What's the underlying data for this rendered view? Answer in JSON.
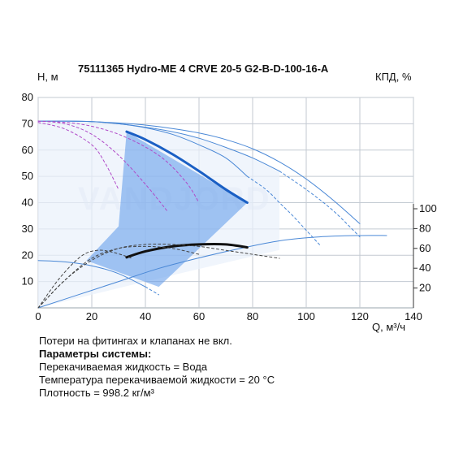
{
  "chart_data": {
    "type": "line",
    "title": "75111365 Hydro-ME 4 CRVE 20-5 G2-B-D-100-16-A",
    "ylabel_left": "H, м",
    "ylabel_right": "КПД, %",
    "xlabel": "Q, м³/ч",
    "xlim": [
      0,
      140
    ],
    "ylim_left": [
      0,
      80
    ],
    "ylim_right": [
      0,
      100
    ],
    "x_ticks": [
      0,
      20,
      40,
      60,
      80,
      100,
      120,
      140
    ],
    "y_ticks_left": [
      10,
      20,
      30,
      40,
      50,
      60,
      70,
      80
    ],
    "y_ticks_right": [
      20,
      40,
      60,
      80,
      100
    ],
    "grid": true,
    "watermark": "VANDJORD",
    "shaded_area": {
      "color": "#5b97ea",
      "points": [
        [
          18,
          18
        ],
        [
          30,
          31
        ],
        [
          33,
          67
        ],
        [
          78,
          40
        ],
        [
          45,
          8
        ]
      ]
    },
    "series": [
      {
        "axis": "left",
        "color": "#1a5fc4",
        "width": 3,
        "x": [
          33,
          40,
          50,
          60,
          70,
          78
        ],
        "y": [
          67,
          64,
          58.5,
          52,
          45,
          40
        ]
      },
      {
        "axis": "left",
        "color": "#4a88d6",
        "width": 1,
        "x": [
          0,
          10,
          20,
          30,
          40,
          50,
          60,
          70,
          78
        ],
        "y": [
          71,
          71,
          70.8,
          70,
          68.5,
          66,
          62,
          57,
          50
        ]
      },
      {
        "axis": "left",
        "color": "#4a88d6",
        "width": 1,
        "dash": "3,3",
        "x": [
          78,
          85,
          90,
          95,
          100,
          105
        ],
        "y": [
          50,
          45,
          40,
          35,
          29.5,
          24
        ]
      },
      {
        "axis": "left",
        "color": "#4a88d6",
        "width": 1,
        "x": [
          0,
          10,
          20,
          30,
          40,
          50,
          60,
          70,
          80,
          90
        ],
        "y": [
          71,
          71,
          70.8,
          70,
          68.7,
          67,
          64.5,
          61,
          57,
          52
        ]
      },
      {
        "axis": "left",
        "color": "#4a88d6",
        "width": 1,
        "dash": "3,3",
        "x": [
          90,
          100,
          110,
          120
        ],
        "y": [
          52,
          45,
          37,
          27
        ]
      },
      {
        "axis": "left",
        "color": "#4a88d6",
        "width": 1,
        "x": [
          0,
          10,
          20,
          30,
          40,
          50,
          60,
          70,
          80,
          90,
          100,
          110,
          120
        ],
        "y": [
          71,
          71,
          70.8,
          70.3,
          69.5,
          68.2,
          66.5,
          64,
          60.5,
          55.5,
          49,
          41,
          32
        ]
      },
      {
        "axis": "left",
        "color": "#b04ac8",
        "width": 1,
        "dash": "3,3",
        "x": [
          0,
          10,
          20,
          25,
          30
        ],
        "y": [
          70.5,
          68,
          62,
          55,
          45
        ]
      },
      {
        "axis": "left",
        "color": "#b04ac8",
        "width": 1,
        "dash": "3,3",
        "x": [
          0,
          10,
          20,
          30,
          40,
          48
        ],
        "y": [
          71,
          70,
          66,
          58,
          47,
          37
        ]
      },
      {
        "axis": "left",
        "color": "#b04ac8",
        "width": 1,
        "dash": "3,3",
        "x": [
          0,
          15,
          30,
          45,
          55,
          60
        ],
        "y": [
          71,
          70,
          66,
          58,
          48,
          40
        ]
      },
      {
        "axis": "left",
        "color": "#4a88d6",
        "width": 1,
        "x": [
          0,
          10,
          20,
          30,
          40
        ],
        "y": [
          18,
          17.5,
          16,
          13,
          8
        ]
      },
      {
        "axis": "left",
        "color": "#4a88d6",
        "width": 1,
        "dash": "3,3",
        "x": [
          40,
          45
        ],
        "y": [
          8,
          5
        ]
      },
      {
        "axis": "left",
        "color": "#4a88d6",
        "width": 1,
        "x": [
          0,
          15,
          30,
          45,
          60,
          75,
          90,
          105,
          120,
          130
        ],
        "y": [
          0,
          5,
          10,
          15,
          19,
          22.5,
          25.5,
          27,
          27.5,
          27.5
        ]
      },
      {
        "axis": "right",
        "color": "#111111",
        "width": 3,
        "x": [
          33,
          40,
          50,
          60,
          70,
          78
        ],
        "y": [
          51,
          57,
          62,
          64,
          64,
          61
        ]
      },
      {
        "axis": "right",
        "color": "#444444",
        "width": 1,
        "dash": "3,3",
        "x": [
          0,
          10,
          20,
          30,
          40,
          50,
          60,
          70,
          80,
          90
        ],
        "y": [
          0,
          28,
          48,
          60,
          64,
          64,
          62,
          58,
          54,
          50
        ]
      },
      {
        "axis": "right",
        "color": "#444444",
        "width": 1,
        "dash": "3,3",
        "x": [
          0,
          8,
          16,
          22,
          28,
          35
        ],
        "y": [
          0,
          30,
          52,
          58,
          56,
          50
        ]
      },
      {
        "axis": "right",
        "color": "#444444",
        "width": 1,
        "dash": "3,3",
        "x": [
          0,
          10,
          20,
          30,
          40,
          50,
          60
        ],
        "y": [
          0,
          28,
          50,
          60,
          62,
          60,
          54
        ]
      }
    ]
  },
  "notes": {
    "line1": "Потери на фитингах и клапанах не вкл.",
    "line2": "Параметры системы:",
    "line3": "Перекачиваемая жидкость = Вода",
    "line4": "Температура перекачиваемой жидкости = 20 °C",
    "line5": "Плотность = 998.2 кг/м³"
  }
}
